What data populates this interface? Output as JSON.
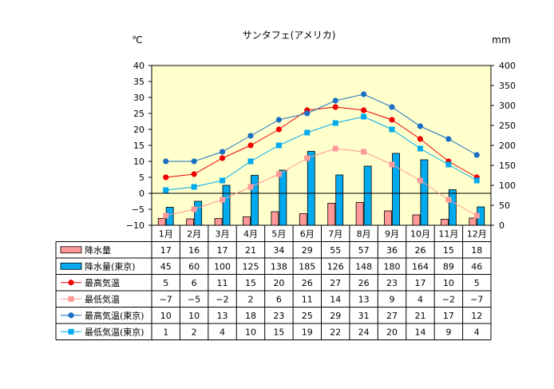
{
  "chart_data": {
    "type": "bar",
    "title": "サンタフェ(アメリカ)",
    "left_unit": "℃",
    "right_unit": "mm",
    "categories": [
      "1月",
      "2月",
      "3月",
      "4月",
      "5月",
      "6月",
      "7月",
      "8月",
      "9月",
      "10月",
      "11月",
      "12月"
    ],
    "left_axis": {
      "min": -10,
      "max": 40,
      "step": 5,
      "ticks": [
        "40",
        "35",
        "30",
        "25",
        "20",
        "15",
        "10",
        "5",
        "0",
        "−5",
        "−10"
      ]
    },
    "right_axis": {
      "min": 0,
      "max": 400,
      "step": 50,
      "ticks": [
        "400",
        "350",
        "300",
        "250",
        "200",
        "150",
        "100",
        "50",
        "0"
      ]
    },
    "grid": false,
    "series": [
      {
        "name": "降水量",
        "kind": "bar",
        "axis": "right",
        "color": "#ff9999",
        "values": [
          17,
          16,
          17,
          21,
          34,
          29,
          55,
          57,
          36,
          26,
          15,
          18
        ],
        "labels": [
          "17",
          "16",
          "17",
          "21",
          "34",
          "29",
          "55",
          "57",
          "36",
          "26",
          "15",
          "18"
        ]
      },
      {
        "name": "降水量(東京)",
        "kind": "bar",
        "axis": "right",
        "color": "#00aaee",
        "values": [
          45,
          60,
          100,
          125,
          138,
          185,
          126,
          148,
          180,
          164,
          89,
          46
        ],
        "labels": [
          "45",
          "60",
          "100",
          "125",
          "138",
          "185",
          "126",
          "148",
          "180",
          "164",
          "89",
          "46"
        ]
      },
      {
        "name": "最高気温",
        "kind": "line",
        "marker": "circle",
        "axis": "left",
        "color": "#ee0000",
        "values": [
          5,
          6,
          11,
          15,
          20,
          26,
          27,
          26,
          23,
          17,
          10,
          5
        ],
        "labels": [
          "5",
          "6",
          "11",
          "15",
          "20",
          "26",
          "27",
          "26",
          "23",
          "17",
          "10",
          "5"
        ]
      },
      {
        "name": "最低気温",
        "kind": "line",
        "marker": "square",
        "axis": "left",
        "color": "#ff9999",
        "values": [
          -7,
          -5,
          -2,
          2,
          6,
          11,
          14,
          13,
          9,
          4,
          -2,
          -7
        ],
        "labels": [
          "−7",
          "−5",
          "−2",
          "2",
          "6",
          "11",
          "14",
          "13",
          "9",
          "4",
          "−2",
          "−7"
        ]
      },
      {
        "name": "最高気温(東京)",
        "kind": "line",
        "marker": "circle",
        "axis": "left",
        "color": "#1a6fc4",
        "values": [
          10,
          10,
          13,
          18,
          23,
          25,
          29,
          31,
          27,
          21,
          17,
          12
        ],
        "labels": [
          "10",
          "10",
          "13",
          "18",
          "23",
          "25",
          "29",
          "31",
          "27",
          "21",
          "17",
          "12"
        ]
      },
      {
        "name": "最低気温(東京)",
        "kind": "line",
        "marker": "square",
        "axis": "left",
        "color": "#00aaee",
        "values": [
          1,
          2,
          4,
          10,
          15,
          19,
          22,
          24,
          20,
          14,
          9,
          4
        ],
        "labels": [
          "1",
          "2",
          "4",
          "10",
          "15",
          "19",
          "22",
          "24",
          "20",
          "14",
          "9",
          "4"
        ]
      }
    ],
    "colors": {
      "plot_background": "#ffffcc",
      "zero_line": "#000000"
    }
  }
}
